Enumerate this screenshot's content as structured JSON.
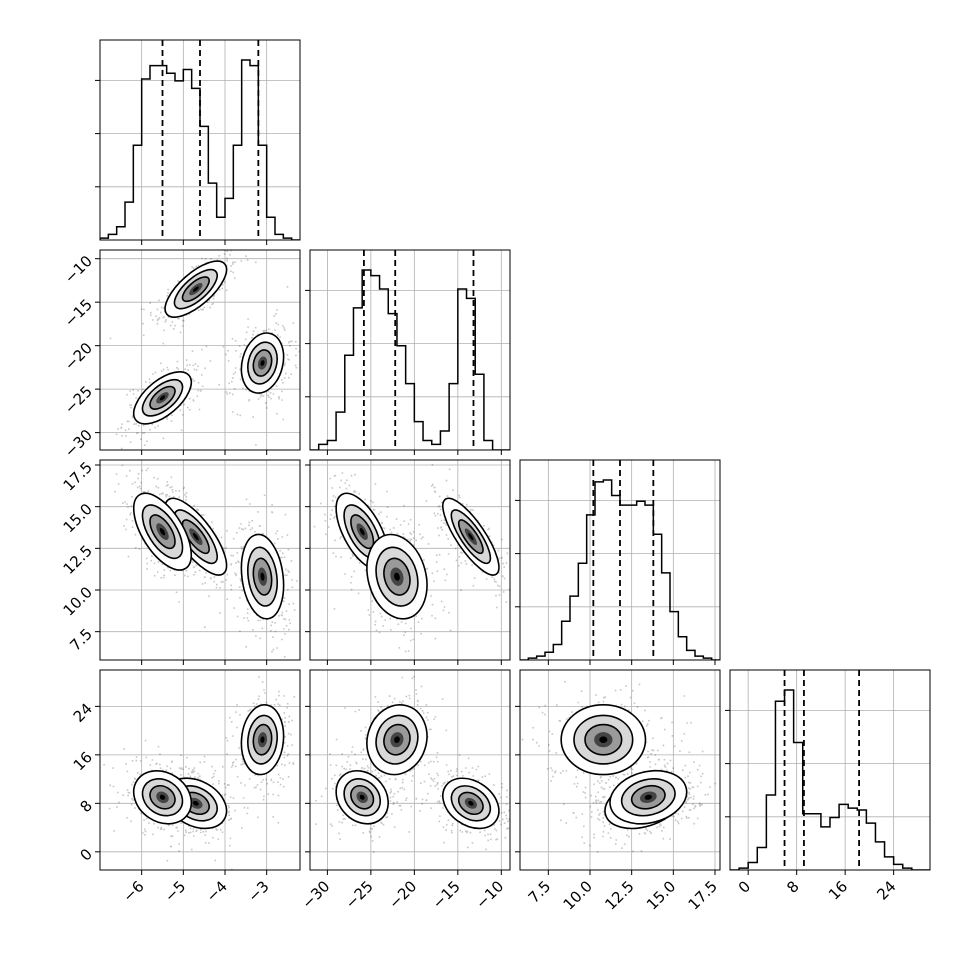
{
  "chart_data": {
    "type": "corner",
    "grid": true,
    "variables": [
      {
        "range": [
          -7,
          -2.2
        ],
        "ticks": [
          -6,
          -5,
          -4,
          -3
        ],
        "tick_labels": [
          "−6",
          "−5",
          "−4",
          "−3"
        ],
        "quantiles": [
          -5.5,
          -4.6,
          -3.2
        ],
        "hist_bins": [
          -7.0,
          -6.8,
          -6.6,
          -6.4,
          -6.2,
          -6.0,
          -5.8,
          -5.6,
          -5.4,
          -5.2,
          -5.0,
          -4.8,
          -4.6,
          -4.4,
          -4.2,
          -4.0,
          -3.8,
          -3.6,
          -3.4,
          -3.2,
          -3.0,
          -2.8,
          -2.6,
          -2.4,
          -2.2
        ],
        "hist_counts": [
          0.01,
          0.03,
          0.07,
          0.2,
          0.5,
          0.85,
          0.92,
          0.92,
          0.88,
          0.84,
          0.9,
          0.8,
          0.6,
          0.3,
          0.12,
          0.22,
          0.5,
          0.95,
          0.92,
          0.5,
          0.12,
          0.03,
          0.01,
          0.0
        ]
      },
      {
        "range": [
          -32,
          -9
        ],
        "ticks": [
          -30,
          -25,
          -20,
          -15,
          -10
        ],
        "tick_labels": [
          "−30",
          "−25",
          "−20",
          "−15",
          "−10"
        ],
        "y_ticks": [
          -10,
          -15,
          -20,
          -25,
          -30
        ],
        "y_tick_labels": [
          "−10",
          "−15",
          "−20",
          "−25",
          "−30"
        ],
        "quantiles": [
          -25.8,
          -22.2,
          -13.2
        ],
        "hist_bins": [
          -32,
          -31,
          -30,
          -29,
          -28,
          -27,
          -26,
          -25,
          -24,
          -23,
          -22,
          -21,
          -20,
          -19,
          -18,
          -17,
          -16,
          -15,
          -14,
          -13,
          -12,
          -11,
          -10,
          -9
        ],
        "hist_counts": [
          0.0,
          0.03,
          0.05,
          0.2,
          0.5,
          0.75,
          0.95,
          0.92,
          0.85,
          0.72,
          0.55,
          0.35,
          0.15,
          0.05,
          0.03,
          0.1,
          0.35,
          0.85,
          0.8,
          0.4,
          0.05,
          0.0,
          0.0
        ]
      },
      {
        "range": [
          5.8,
          17.8
        ],
        "ticks": [
          7.5,
          10.0,
          12.5,
          15.0,
          17.5
        ],
        "tick_labels": [
          "7.5",
          "10.0",
          "12.5",
          "15.0",
          "17.5"
        ],
        "y_ticks": [
          17.5,
          15.0,
          12.5,
          10.0,
          7.5
        ],
        "y_tick_labels": [
          "17.5",
          "15.0",
          "12.5",
          "10.0",
          "7.5"
        ],
        "quantiles": [
          10.2,
          11.8,
          13.8
        ],
        "hist_bins": [
          5.8,
          6.3,
          6.8,
          7.3,
          7.8,
          8.3,
          8.8,
          9.3,
          9.8,
          10.3,
          10.8,
          11.3,
          11.8,
          12.3,
          12.8,
          13.3,
          13.8,
          14.3,
          14.8,
          15.3,
          15.8,
          16.3,
          16.8,
          17.3,
          17.8
        ],
        "hist_counts": [
          0.0,
          0.01,
          0.02,
          0.04,
          0.08,
          0.2,
          0.33,
          0.5,
          0.75,
          0.92,
          0.93,
          0.85,
          0.8,
          0.8,
          0.82,
          0.8,
          0.65,
          0.45,
          0.25,
          0.12,
          0.05,
          0.02,
          0.01,
          0.0
        ]
      },
      {
        "range": [
          -3,
          30
        ],
        "ticks": [
          0,
          8,
          16,
          24
        ],
        "tick_labels": [
          "0",
          "8",
          "16",
          "24"
        ],
        "y_ticks": [
          24,
          16,
          8,
          0
        ],
        "y_tick_labels": [
          "24",
          "16",
          "8",
          "0"
        ],
        "quantiles": [
          6.0,
          9.2,
          18.3
        ],
        "hist_bins": [
          -3,
          -1.5,
          0,
          1.5,
          3,
          4.5,
          6,
          7.5,
          9,
          10.5,
          12,
          13.5,
          15,
          16.5,
          18,
          19.5,
          21,
          22.5,
          24,
          25.5,
          27,
          28.5,
          30
        ],
        "hist_counts": [
          0.0,
          0.01,
          0.04,
          0.12,
          0.4,
          0.9,
          0.96,
          0.68,
          0.3,
          0.3,
          0.23,
          0.28,
          0.35,
          0.33,
          0.32,
          0.25,
          0.15,
          0.07,
          0.03,
          0.01,
          0.0,
          0.0
        ]
      }
    ],
    "clusters": [
      {
        "weight": 0.35,
        "means": [
          -4.7,
          -13.5,
          13.2,
          8.0
        ],
        "sds": [
          0.32,
          1.4,
          1.0,
          1.8
        ],
        "corr": [
          [
            1,
            0.7,
            -0.75,
            -0.3
          ],
          [
            0.7,
            1,
            -0.8,
            -0.3
          ],
          [
            -0.75,
            -0.8,
            1,
            0.3
          ],
          [
            -0.3,
            -0.3,
            0.3,
            1
          ]
        ]
      },
      {
        "weight": 0.3,
        "means": [
          -5.5,
          -26.0,
          13.5,
          9.0
        ],
        "sds": [
          0.3,
          1.3,
          1.0,
          1.9
        ],
        "corr": [
          [
            1,
            0.6,
            -0.6,
            -0.2
          ],
          [
            0.6,
            1,
            -0.6,
            -0.2
          ],
          [
            -0.6,
            -0.6,
            1,
            0.2
          ],
          [
            -0.2,
            -0.2,
            0.2,
            1
          ]
        ]
      },
      {
        "weight": 0.35,
        "means": [
          -3.1,
          -22.0,
          10.8,
          18.5
        ],
        "sds": [
          0.22,
          1.5,
          1.1,
          2.5
        ],
        "corr": [
          [
            1,
            0.2,
            -0.2,
            0.1
          ],
          [
            0.2,
            1,
            -0.2,
            0.1
          ],
          [
            -0.2,
            -0.2,
            1,
            0.0
          ],
          [
            0.1,
            0.1,
            0.0,
            1
          ]
        ]
      }
    ]
  }
}
